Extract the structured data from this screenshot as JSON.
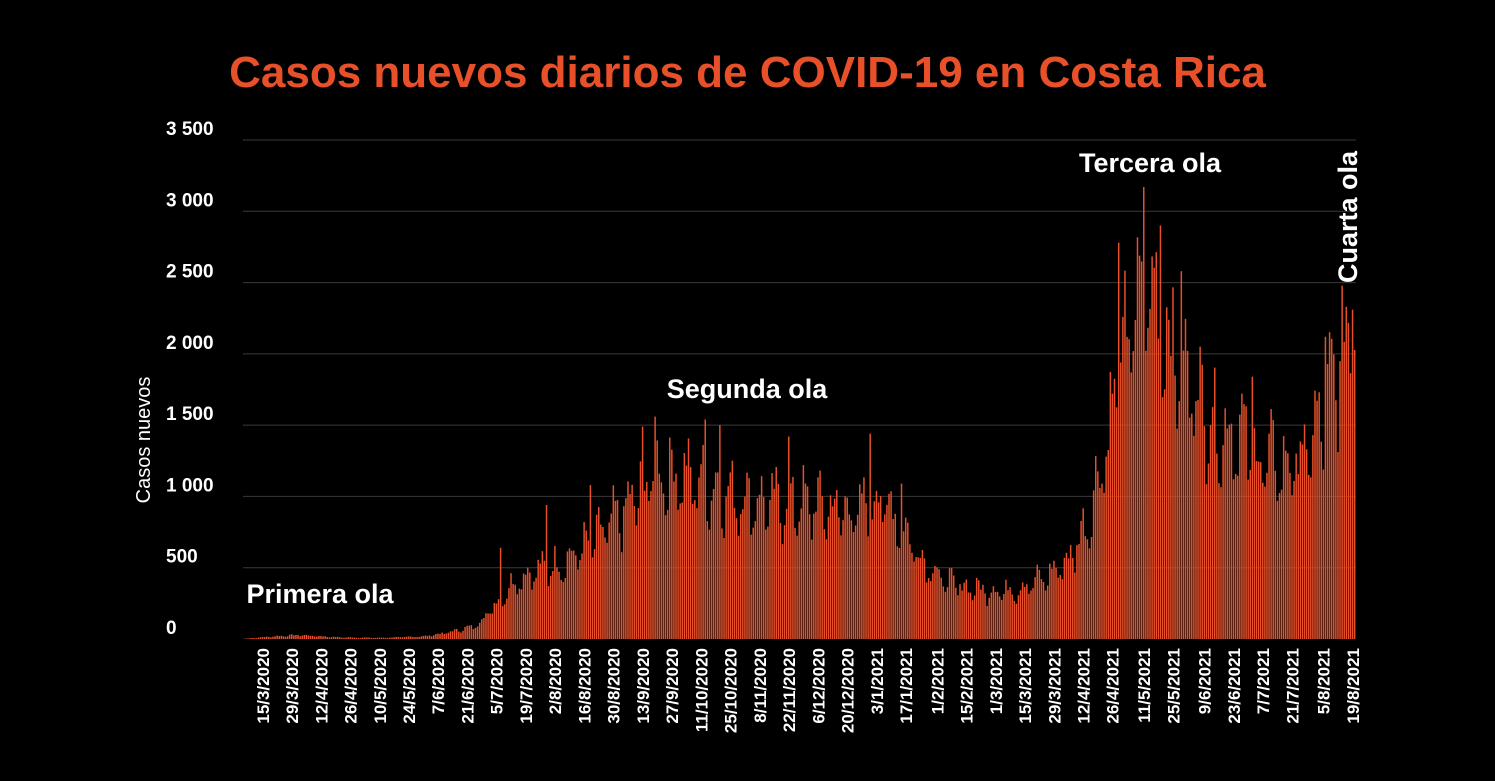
{
  "colors": {
    "background": "#000000",
    "bar": "#e8502a",
    "title": "#e8502a",
    "text": "#ffffff"
  },
  "chart_data": {
    "type": "bar",
    "title": "Casos nuevos diarios de COVID-19 en Costa Rica",
    "ylabel": "Casos nuevos",
    "xlabel": "",
    "ylim": [
      0,
      3500
    ],
    "grid": true,
    "yticks": [
      0,
      500,
      1000,
      1500,
      2000,
      2500,
      3000,
      3500
    ],
    "ytick_labels": [
      "0",
      "500",
      "1 000",
      "1 500",
      "2 000",
      "2 500",
      "3 000",
      "3 500"
    ],
    "x_start": "2020-03-06",
    "x_end": "2021-08-20",
    "xtick_labels": [
      "15/3/2020",
      "29/3/2020",
      "12/4/2020",
      "26/4/2020",
      "10/5/2020",
      "24/5/2020",
      "7/6/2020",
      "21/6/2020",
      "5/7/2020",
      "19/7/2020",
      "2/8/2020",
      "16/8/2020",
      "30/8/2020",
      "13/9/2020",
      "27/9/2020",
      "11/10/2020",
      "25/10/2020",
      "8/11/2020",
      "22/11/2020",
      "6/12/2020",
      "20/12/2020",
      "3/1/2021",
      "17/1/2021",
      "1/2/2021",
      "15/2/2021",
      "1/3/2021",
      "15/3/2021",
      "29/3/2021",
      "12/4/2021",
      "26/4/2021",
      "11/5/2021",
      "25/5/2021",
      "9/6/2021",
      "23/6/2021",
      "7/7/2021",
      "21/7/2021",
      "5/8/2021",
      "19/8/2021"
    ],
    "series": [
      {
        "trend": [
          [
            "2020-03-06",
            2
          ],
          [
            "2020-03-20",
            18
          ],
          [
            "2020-04-01",
            28
          ],
          [
            "2020-04-20",
            12
          ],
          [
            "2020-05-10",
            8
          ],
          [
            "2020-05-31",
            18
          ],
          [
            "2020-06-10",
            40
          ],
          [
            "2020-06-25",
            90
          ],
          [
            "2020-07-05",
            250
          ],
          [
            "2020-07-15",
            420
          ],
          [
            "2020-07-25",
            480
          ],
          [
            "2020-08-05",
            520
          ],
          [
            "2020-08-20",
            680
          ],
          [
            "2020-09-05",
            900
          ],
          [
            "2020-09-18",
            1150
          ],
          [
            "2020-09-27",
            1150
          ],
          [
            "2020-10-10",
            1100
          ],
          [
            "2020-10-25",
            1000
          ],
          [
            "2020-11-10",
            950
          ],
          [
            "2020-11-25",
            950
          ],
          [
            "2020-12-10",
            920
          ],
          [
            "2020-12-25",
            880
          ],
          [
            "2021-01-05",
            1000
          ],
          [
            "2021-01-15",
            780
          ],
          [
            "2021-01-25",
            560
          ],
          [
            "2021-02-05",
            400
          ],
          [
            "2021-02-15",
            360
          ],
          [
            "2021-02-25",
            340
          ],
          [
            "2021-03-10",
            340
          ],
          [
            "2021-03-25",
            430
          ],
          [
            "2021-04-05",
            550
          ],
          [
            "2021-04-15",
            850
          ],
          [
            "2021-04-25",
            1500
          ],
          [
            "2021-05-05",
            2200
          ],
          [
            "2021-05-12",
            2550
          ],
          [
            "2021-05-20",
            2200
          ],
          [
            "2021-06-01",
            1850
          ],
          [
            "2021-06-15",
            1450
          ],
          [
            "2021-06-25",
            1450
          ],
          [
            "2021-07-05",
            1250
          ],
          [
            "2021-07-20",
            1200
          ],
          [
            "2021-07-30",
            1350
          ],
          [
            "2021-08-08",
            1700
          ],
          [
            "2021-08-20",
            2300
          ]
        ],
        "peaks": [
          [
            "2020-07-07",
            640
          ],
          [
            "2020-07-29",
            940
          ],
          [
            "2020-08-19",
            1080
          ],
          [
            "2020-09-13",
            1490
          ],
          [
            "2020-09-19",
            1560
          ],
          [
            "2020-10-13",
            1540
          ],
          [
            "2020-10-20",
            1500
          ],
          [
            "2020-11-22",
            1420
          ],
          [
            "2020-12-31",
            1440
          ],
          [
            "2021-01-15",
            1090
          ],
          [
            "2021-04-29",
            2780
          ],
          [
            "2021-05-11",
            3170
          ],
          [
            "2021-05-19",
            2900
          ],
          [
            "2021-05-29",
            2580
          ],
          [
            "2021-06-07",
            2050
          ],
          [
            "2021-07-02",
            1840
          ],
          [
            "2021-08-06",
            2120
          ],
          [
            "2021-08-19",
            2310
          ]
        ]
      }
    ],
    "annotations": [
      {
        "text": "Primera ola"
      },
      {
        "text": "Segunda ola"
      },
      {
        "text": "Tercera ola"
      },
      {
        "text": "Cuarta ola"
      }
    ]
  }
}
